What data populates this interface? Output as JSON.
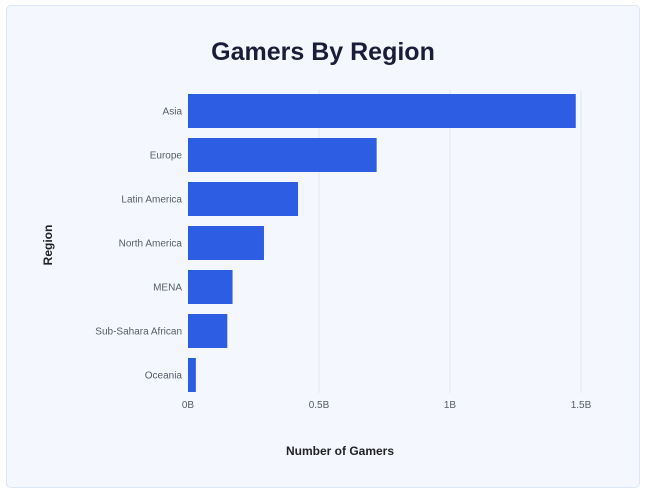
{
  "chart_data": {
    "type": "bar",
    "orientation": "horizontal",
    "title": "Gamers By Region",
    "xlabel": "Number of Gamers",
    "ylabel": "Region",
    "categories": [
      "Asia",
      "Europe",
      "Latin America",
      "North America",
      "MENA",
      "Sub-Sahara African",
      "Oceania"
    ],
    "values": [
      1.48,
      0.72,
      0.42,
      0.29,
      0.17,
      0.15,
      0.03
    ],
    "value_unit": "billions",
    "xlim": [
      0,
      1.5
    ],
    "xticks": [
      0,
      0.5,
      1,
      1.5
    ],
    "xtick_labels": [
      "0B",
      "0.5B",
      "1B",
      "1.5B"
    ],
    "grid": "vertical",
    "legend": "none",
    "bar_color": "#2d5de3"
  }
}
